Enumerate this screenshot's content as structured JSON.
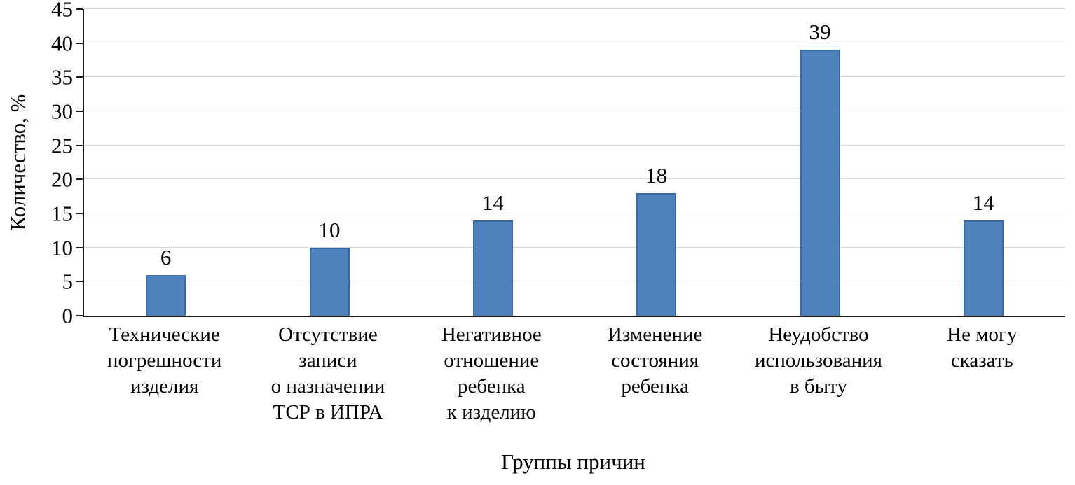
{
  "chart_data": {
    "type": "bar",
    "title": "",
    "xlabel": "Группы причин",
    "ylabel": "Количество, %",
    "ylim": [
      0,
      45
    ],
    "yticks": [
      0,
      5,
      10,
      15,
      20,
      25,
      30,
      35,
      40,
      45
    ],
    "grid": true,
    "legend_position": "none",
    "bar_color": "#4e81bd",
    "bar_border_color": "#3a68a0",
    "categories": [
      "Технические погрешности изделия",
      "Отсутствие записи о назначении ТСР в ИПРА",
      "Негативное отношение ребенка к изделию",
      "Изменение состояния ребенка",
      "Неудобство использования в быту",
      "Не могу сказать"
    ],
    "category_lines": [
      [
        "Технические",
        "погрешности",
        "изделия"
      ],
      [
        "Отсутствие",
        "записи",
        "о назначении",
        "ТСР в ИПРА"
      ],
      [
        "Негативное",
        "отношение",
        "ребенка",
        "к изделию"
      ],
      [
        "Изменение",
        "состояния",
        "ребенка"
      ],
      [
        "Неудобство",
        "использования",
        "в быту"
      ],
      [
        "Не могу",
        "сказать"
      ]
    ],
    "values": [
      6,
      10,
      14,
      18,
      39,
      14
    ],
    "data_labels": [
      "6",
      "10",
      "14",
      "18",
      "39",
      "14"
    ]
  }
}
